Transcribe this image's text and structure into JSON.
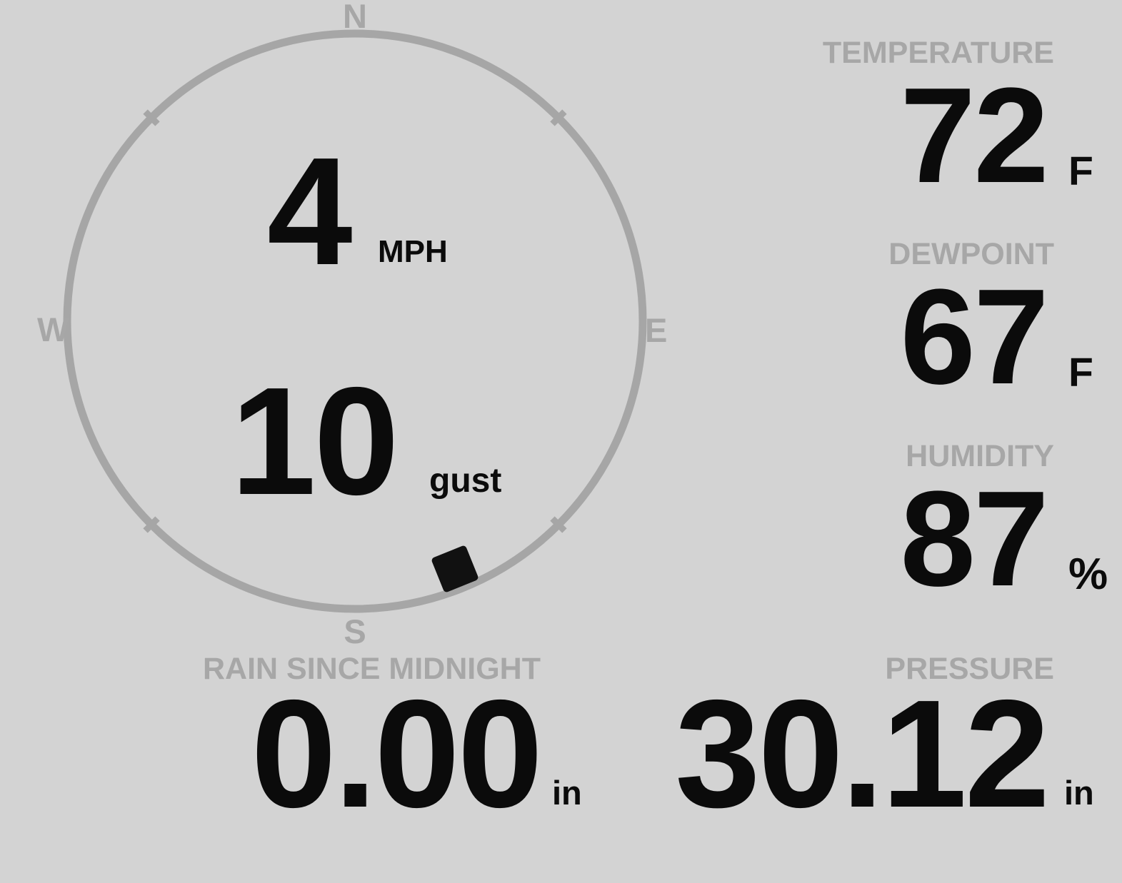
{
  "wind": {
    "cardinals": {
      "n": "N",
      "e": "E",
      "s": "S",
      "w": "W"
    },
    "speed": "4",
    "speed_unit": "MPH",
    "gust": "10",
    "gust_label": "gust",
    "direction_deg": 158
  },
  "metrics": [
    {
      "label": "TEMPERATURE",
      "value": "72",
      "unit": "F"
    },
    {
      "label": "DEWPOINT",
      "value": "67",
      "unit": "F"
    },
    {
      "label": "HUMIDITY",
      "value": "87",
      "unit": "%"
    }
  ],
  "bottom_metrics": [
    {
      "label": "RAIN SINCE MIDNIGHT",
      "value": "0.00",
      "unit": "in"
    },
    {
      "label": "PRESSURE",
      "value": "30.12",
      "unit": "in"
    }
  ],
  "colors": {
    "background": "#d3d3d3",
    "muted": "#a7a7a7",
    "ring": "#a6a6a6",
    "value_text": "#0b0b0b",
    "marker": "#111111"
  }
}
